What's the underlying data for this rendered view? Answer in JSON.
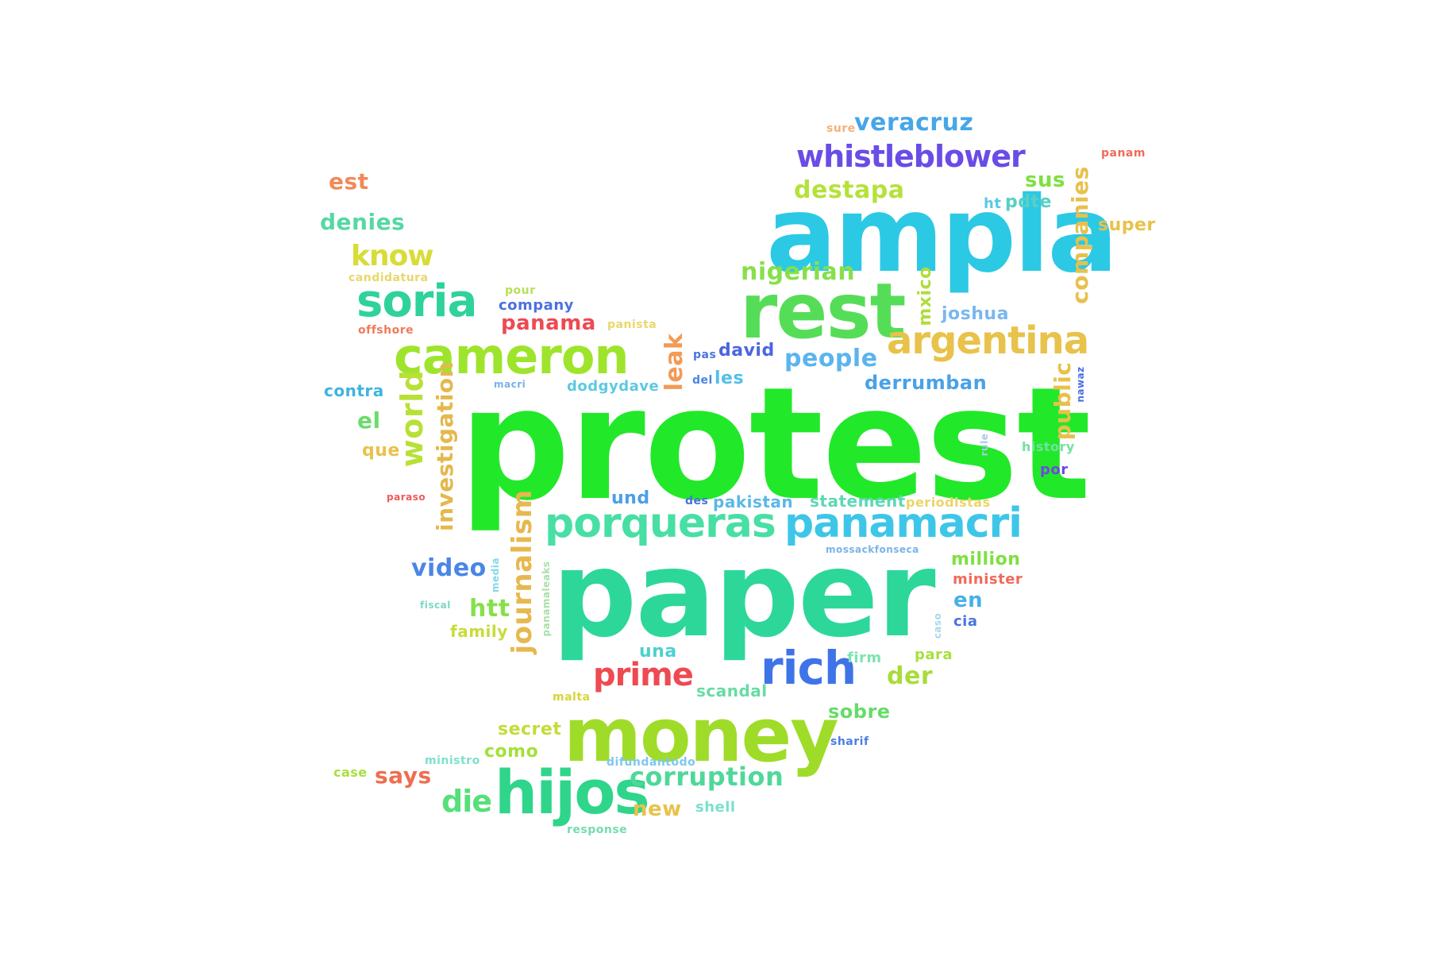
{
  "words": [
    {
      "text": "protest",
      "color": "#22e82a"
    },
    {
      "text": "paper",
      "color": "#2dd79a"
    },
    {
      "text": "ampla",
      "color": "#2cc9e4"
    },
    {
      "text": "money",
      "color": "#9fdc2a"
    },
    {
      "text": "rest",
      "color": "#56dd58"
    },
    {
      "text": "hijos",
      "color": "#2fd58a"
    },
    {
      "text": "cameron",
      "color": "#9fe42c"
    },
    {
      "text": "porqueras",
      "color": "#48dfa4"
    },
    {
      "text": "panamacri",
      "color": "#3ec6e8"
    },
    {
      "text": "soria",
      "color": "#2ed29a"
    },
    {
      "text": "argentina",
      "color": "#e8c24a"
    },
    {
      "text": "whistleblower",
      "color": "#6a4ce6"
    },
    {
      "text": "rich",
      "color": "#3f74e8"
    },
    {
      "text": "corruption",
      "color": "#4fd89a"
    },
    {
      "text": "prime",
      "color": "#ee4a52"
    },
    {
      "text": "journalism",
      "color": "#e6b84e"
    },
    {
      "text": "investigation",
      "color": "#e4b84c"
    },
    {
      "text": "companies",
      "color": "#e8c04c"
    },
    {
      "text": "world",
      "color": "#b8e036"
    },
    {
      "text": "veracruz",
      "color": "#46a6e8"
    },
    {
      "text": "destapa",
      "color": "#b4e23a"
    },
    {
      "text": "nigerian",
      "color": "#86e04a"
    },
    {
      "text": "people",
      "color": "#5ab4ee"
    },
    {
      "text": "know",
      "color": "#d8dc36"
    },
    {
      "text": "panama",
      "color": "#ee4a52"
    },
    {
      "text": "leak",
      "color": "#f29a56"
    },
    {
      "text": "video",
      "color": "#4a86e6"
    },
    {
      "text": "says",
      "color": "#ee6e50"
    },
    {
      "text": "die",
      "color": "#56e07a"
    },
    {
      "text": "new",
      "color": "#e8c24a"
    },
    {
      "text": "derrumban",
      "color": "#48a2e8"
    },
    {
      "text": "public",
      "color": "#e8c04a"
    },
    {
      "text": "denies",
      "color": "#56d8a4"
    },
    {
      "text": "est",
      "color": "#f08a58"
    },
    {
      "text": "sus",
      "color": "#7ee040"
    },
    {
      "text": "pdte",
      "color": "#58d0c4"
    },
    {
      "text": "super",
      "color": "#e8c24a"
    },
    {
      "text": "joshua",
      "color": "#7ab8ee"
    },
    {
      "text": "mxico",
      "color": "#b0dc3a"
    },
    {
      "text": "htt",
      "color": "#86e04a"
    },
    {
      "text": "million",
      "color": "#7ee040"
    },
    {
      "text": "en",
      "color": "#48b0e8"
    },
    {
      "text": "minister",
      "color": "#f06a5a"
    },
    {
      "text": "der",
      "color": "#a8dc3a"
    },
    {
      "text": "sobre",
      "color": "#66dc6a"
    },
    {
      "text": "una",
      "color": "#4ed0d0"
    },
    {
      "text": "scandal",
      "color": "#66dca4"
    },
    {
      "text": "secret",
      "color": "#c4dc3a"
    },
    {
      "text": "como",
      "color": "#a4e03a"
    },
    {
      "text": "el",
      "color": "#6adc6a"
    },
    {
      "text": "que",
      "color": "#e8c24a"
    },
    {
      "text": "contra",
      "color": "#3eb4e0"
    },
    {
      "text": "und",
      "color": "#4aa0e8"
    },
    {
      "text": "statement",
      "color": "#5ed8b4"
    },
    {
      "text": "pakistan",
      "color": "#5ab8e6"
    },
    {
      "text": "david",
      "color": "#4c66e0"
    },
    {
      "text": "les",
      "color": "#52c0e8"
    },
    {
      "text": "dodgydave",
      "color": "#5ec8e2"
    },
    {
      "text": "company",
      "color": "#4c70e2"
    },
    {
      "text": "periodistas",
      "color": "#ecd468"
    },
    {
      "text": "history",
      "color": "#74e0a2"
    },
    {
      "text": "por",
      "color": "#7048e0"
    },
    {
      "text": "family",
      "color": "#c8dc3a"
    },
    {
      "text": "firm",
      "color": "#7ce4b0"
    },
    {
      "text": "para",
      "color": "#a8e03c"
    },
    {
      "text": "cia",
      "color": "#4a74e0"
    },
    {
      "text": "shell",
      "color": "#7ae0cc"
    },
    {
      "text": "ht",
      "color": "#58c8e8"
    },
    {
      "text": "case",
      "color": "#a8e03c"
    },
    {
      "text": "ministro",
      "color": "#7ee0cc"
    },
    {
      "text": "difundantodo",
      "color": "#7ec8ee"
    },
    {
      "text": "response",
      "color": "#74dcb2"
    },
    {
      "text": "sharif",
      "color": "#4a7ee2"
    },
    {
      "text": "malta",
      "color": "#d8d43a"
    },
    {
      "text": "panam",
      "color": "#f06a5a"
    },
    {
      "text": "sure",
      "color": "#f4b07a"
    },
    {
      "text": "pour",
      "color": "#b8e058"
    },
    {
      "text": "candidatura",
      "color": "#e8d86a"
    },
    {
      "text": "offshore",
      "color": "#f07a5a"
    },
    {
      "text": "panista",
      "color": "#e8d86a"
    },
    {
      "text": "pas",
      "color": "#4a74e0"
    },
    {
      "text": "del",
      "color": "#4a84e2"
    },
    {
      "text": "macri",
      "color": "#7ab0ea"
    },
    {
      "text": "des",
      "color": "#4a70e0"
    },
    {
      "text": "paraso",
      "color": "#f05a5a"
    },
    {
      "text": "fiscal",
      "color": "#7ad8c6"
    },
    {
      "text": "media",
      "color": "#80d8e8"
    },
    {
      "text": "panamaleaks",
      "color": "#a8e0a8"
    },
    {
      "text": "caso",
      "color": "#a8d8e8"
    },
    {
      "text": "mossackfonseca",
      "color": "#7ab4e8"
    },
    {
      "text": "nawaz",
      "color": "#4a70e0"
    },
    {
      "text": "rule",
      "color": "#a8c8e8"
    }
  ]
}
